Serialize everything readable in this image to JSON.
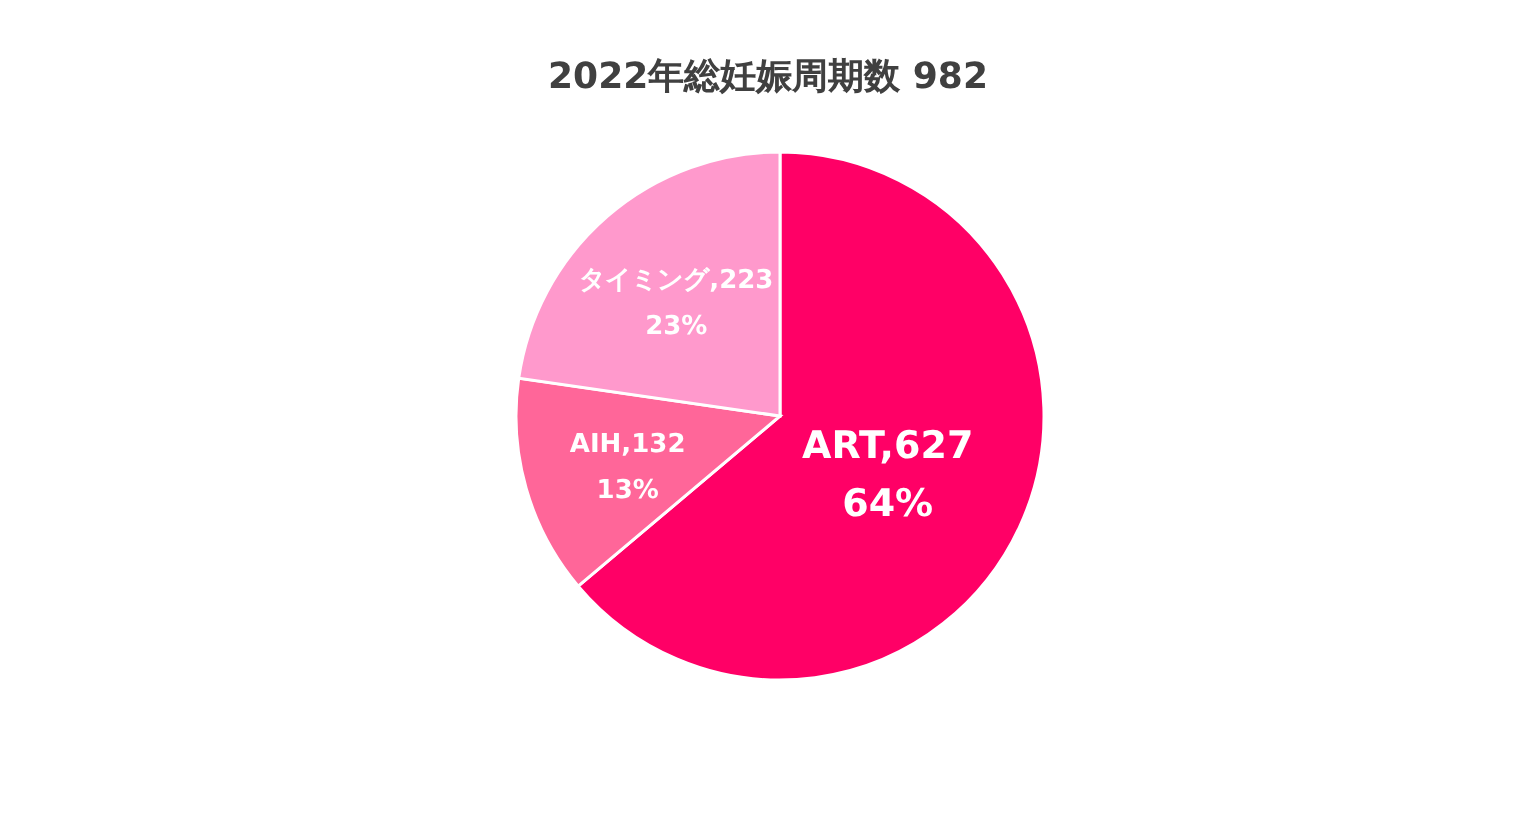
{
  "chart_data": {
    "type": "pie",
    "title": "2022年総妊娠周期数 982",
    "categories": [
      "ART",
      "AIH",
      "タイミング"
    ],
    "values": [
      627,
      132,
      223
    ],
    "colors": [
      "#ff0066",
      "#ff6699",
      "#ff99cc"
    ],
    "value_labels": [
      "627",
      "132",
      "223"
    ],
    "annotations": [
      "64%",
      "13%",
      "23%"
    ],
    "legend": false
  }
}
